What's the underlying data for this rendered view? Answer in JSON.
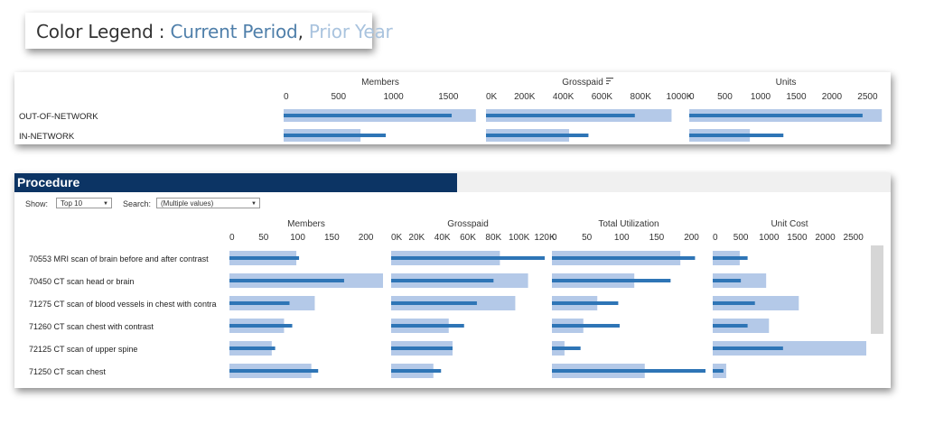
{
  "legend": {
    "label": "Color Legend :",
    "current": "Current Period",
    "separator": ",",
    "prior": "Prior Year"
  },
  "colors": {
    "current": "#2e75b6",
    "prior": "#b4c9e8",
    "header": "#0c3464"
  },
  "procedure_panel": {
    "title": "Procedure",
    "show_label": "Show:",
    "show_value": "Top 10",
    "search_label": "Search:",
    "search_value": "(Multiple values)"
  },
  "chart_data": [
    {
      "type": "bar",
      "id": "network",
      "categories": [
        "OUT-OF-NETWORK",
        "IN-NETWORK"
      ],
      "panels": [
        {
          "title": "Members",
          "ticks": [
            0,
            500,
            1000,
            1500
          ],
          "tick_labels": [
            "0",
            "500",
            "1000",
            "1500"
          ],
          "xlim": [
            0,
            1760
          ],
          "series": [
            {
              "name": "Prior Year",
              "values": [
                1750,
                700
              ]
            },
            {
              "name": "Current Period",
              "values": [
                1530,
                930
              ]
            }
          ]
        },
        {
          "title": "Grosspaid",
          "sort_icon": true,
          "ticks": [
            0,
            200000,
            400000,
            600000,
            800000,
            1000000
          ],
          "tick_labels": [
            "0K",
            "200K",
            "400K",
            "600K",
            "800K",
            "1000K"
          ],
          "xlim": [
            0,
            1000000
          ],
          "series": [
            {
              "name": "Prior Year",
              "values": [
                960000,
                430000
              ]
            },
            {
              "name": "Current Period",
              "values": [
                770000,
                530000
              ]
            }
          ]
        },
        {
          "title": "Units",
          "ticks": [
            0,
            500,
            1000,
            1500,
            2000,
            2500
          ],
          "tick_labels": [
            "0",
            "500",
            "1000",
            "1500",
            "2000",
            "2500"
          ],
          "xlim": [
            0,
            2710
          ],
          "series": [
            {
              "name": "Prior Year",
              "values": [
                2700,
                850
              ]
            },
            {
              "name": "Current Period",
              "values": [
                2430,
                1320
              ]
            }
          ]
        }
      ]
    },
    {
      "type": "bar",
      "id": "procedure",
      "categories": [
        "70553 MRI scan of brain before and after contrast",
        "70450 CT scan head or brain",
        "71275 CT scan of blood vessels in chest with contra",
        "71260 CT scan chest with contrast",
        "72125 CT scan of upper spine",
        "71250 CT scan chest"
      ],
      "panels": [
        {
          "title": "Members",
          "ticks": [
            0,
            50,
            100,
            150,
            200
          ],
          "tick_labels": [
            "0",
            "50",
            "100",
            "150",
            "200"
          ],
          "xlim": [
            0,
            225
          ],
          "series": [
            {
              "name": "Prior Year",
              "values": [
                98,
                225,
                125,
                80,
                62,
                120
              ]
            },
            {
              "name": "Current Period",
              "values": [
                102,
                168,
                88,
                92,
                67,
                130
              ]
            }
          ]
        },
        {
          "title": "Grosspaid",
          "ticks": [
            0,
            20000,
            40000,
            60000,
            80000,
            100000,
            120000
          ],
          "tick_labels": [
            "0K",
            "20K",
            "40K",
            "60K",
            "80K",
            "100K",
            "120K"
          ],
          "xlim": [
            0,
            120000
          ],
          "series": [
            {
              "name": "Prior Year",
              "values": [
                85000,
                107000,
                97000,
                45000,
                48000,
                33000
              ]
            },
            {
              "name": "Current Period",
              "values": [
                120000,
                80000,
                67000,
                57000,
                48000,
                39000
              ]
            }
          ]
        },
        {
          "title": "Total Utilization",
          "ticks": [
            0,
            50,
            100,
            150,
            200
          ],
          "tick_labels": [
            "0",
            "50",
            "100",
            "150",
            "200"
          ],
          "xlim": [
            0,
            220
          ],
          "series": [
            {
              "name": "Prior Year",
              "values": [
                184,
                118,
                65,
                45,
                18,
                133
              ]
            },
            {
              "name": "Current Period",
              "values": [
                205,
                170,
                95,
                97,
                41,
                220
              ]
            }
          ]
        },
        {
          "title": "Unit Cost",
          "ticks": [
            0,
            500,
            1000,
            1500,
            2000,
            2500
          ],
          "tick_labels": [
            "0",
            "500",
            "1000",
            "1500",
            "2000",
            "2500"
          ],
          "xlim": [
            0,
            2730
          ],
          "series": [
            {
              "name": "Prior Year",
              "values": [
                480,
                950,
                1530,
                1000,
                2730,
                240
              ]
            },
            {
              "name": "Current Period",
              "values": [
                620,
                500,
                750,
                620,
                1250,
                190
              ]
            }
          ]
        }
      ]
    }
  ]
}
